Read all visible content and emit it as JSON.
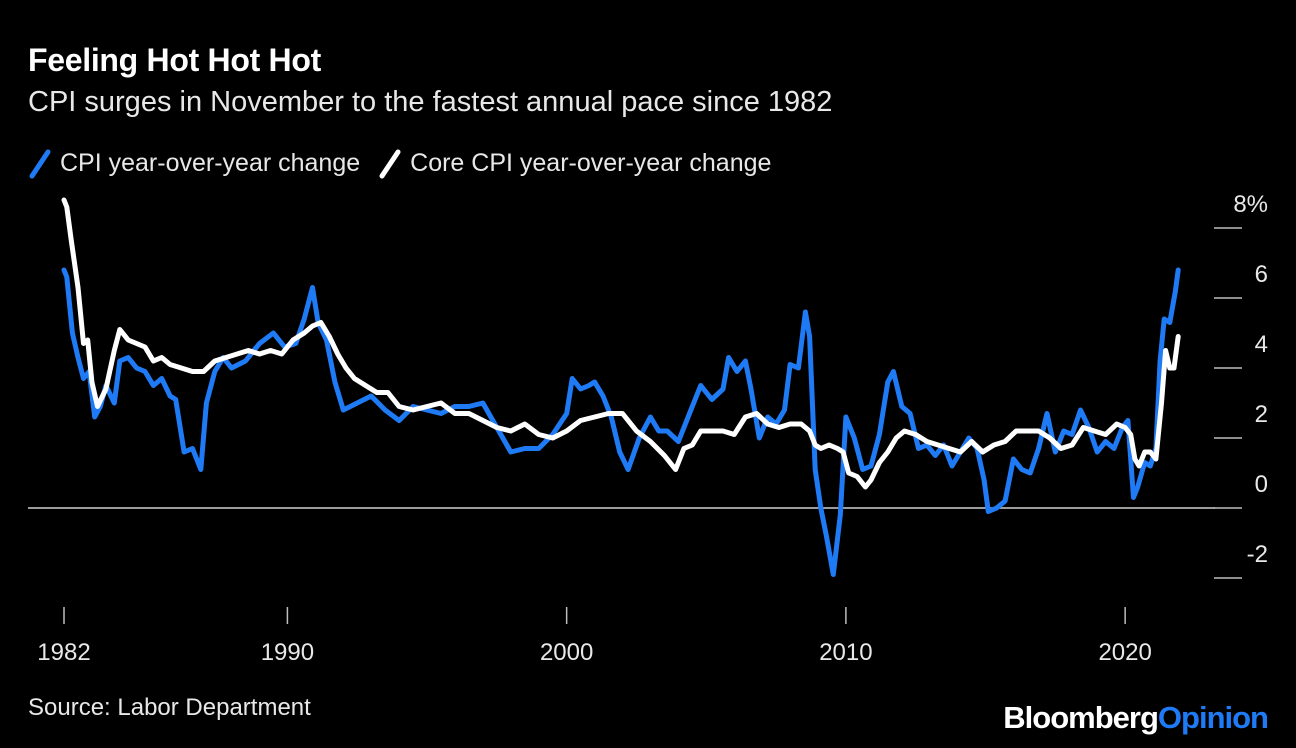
{
  "header": {
    "title": "Feeling Hot Hot Hot",
    "subtitle": "CPI surges in November to the fastest annual pace since 1982"
  },
  "legend": {
    "items": [
      {
        "label": "CPI year-over-year change",
        "color": "#1f7bf5"
      },
      {
        "label": "Core CPI year-over-year change",
        "color": "#ffffff"
      }
    ]
  },
  "footer": {
    "source": "Source: Labor Department",
    "brand_part1": "Bloomberg",
    "brand_part2": "Opinion"
  },
  "chart_data": {
    "type": "line",
    "title": "Feeling Hot Hot Hot",
    "subtitle": "CPI surges in November to the fastest annual pace since 1982",
    "xlabel": "",
    "ylabel": "",
    "ylim": [
      -2,
      8
    ],
    "xlim": [
      1982,
      2022
    ],
    "y_ticks": [
      -2,
      0,
      2,
      4,
      6,
      8
    ],
    "y_tick_labels": [
      "-2",
      "0",
      "2",
      "4",
      "6",
      "8%"
    ],
    "x_ticks": [
      1982,
      1990,
      2000,
      2010,
      2020
    ],
    "x_tick_labels": [
      "1982",
      "1990",
      "2000",
      "2010",
      "2020"
    ],
    "grid": false,
    "zero_line": true,
    "y_axis_position": "right",
    "legend_position": "top-left",
    "series": [
      {
        "name": "CPI year-over-year change",
        "color": "#1f7bf5",
        "x": [
          1982.0,
          1982.1,
          1982.3,
          1982.5,
          1982.7,
          1982.9,
          1983.1,
          1983.3,
          1983.5,
          1983.8,
          1984.0,
          1984.3,
          1984.6,
          1984.9,
          1985.2,
          1985.5,
          1985.8,
          1986.0,
          1986.3,
          1986.6,
          1986.9,
          1987.1,
          1987.4,
          1987.7,
          1988.0,
          1988.5,
          1989.0,
          1989.5,
          1989.9,
          1990.3,
          1990.6,
          1990.9,
          1991.1,
          1991.4,
          1991.7,
          1992.0,
          1992.5,
          1993.0,
          1993.5,
          1994.0,
          1994.5,
          1995.0,
          1995.5,
          1996.0,
          1996.5,
          1997.0,
          1997.5,
          1998.0,
          1998.5,
          1999.0,
          1999.5,
          2000.0,
          2000.2,
          2000.5,
          2000.8,
          2001.0,
          2001.3,
          2001.6,
          2001.9,
          2002.2,
          2002.6,
          2003.0,
          2003.3,
          2003.6,
          2004.0,
          2004.4,
          2004.8,
          2005.2,
          2005.6,
          2005.8,
          2006.1,
          2006.4,
          2006.6,
          2006.9,
          2007.2,
          2007.5,
          2007.8,
          2008.0,
          2008.3,
          2008.55,
          2008.7,
          2008.9,
          2009.1,
          2009.3,
          2009.55,
          2009.8,
          2010.0,
          2010.3,
          2010.6,
          2010.9,
          2011.2,
          2011.5,
          2011.7,
          2012.0,
          2012.3,
          2012.6,
          2012.9,
          2013.2,
          2013.5,
          2013.8,
          2014.1,
          2014.4,
          2014.7,
          2014.95,
          2015.1,
          2015.4,
          2015.7,
          2016.0,
          2016.3,
          2016.6,
          2016.9,
          2017.2,
          2017.5,
          2017.8,
          2018.1,
          2018.4,
          2018.7,
          2019.0,
          2019.3,
          2019.6,
          2019.9,
          2020.1,
          2020.3,
          2020.45,
          2020.7,
          2020.9,
          2021.1,
          2021.25,
          2021.4,
          2021.6,
          2021.8,
          2021.9
        ],
        "y": [
          6.8,
          6.6,
          5.0,
          4.3,
          3.7,
          3.9,
          2.6,
          2.9,
          3.5,
          3.0,
          4.2,
          4.3,
          4.0,
          3.9,
          3.5,
          3.7,
          3.2,
          3.1,
          1.6,
          1.7,
          1.1,
          3.0,
          3.9,
          4.3,
          4.0,
          4.2,
          4.7,
          5.0,
          4.6,
          4.7,
          5.4,
          6.3,
          5.3,
          4.8,
          3.6,
          2.8,
          3.0,
          3.2,
          2.8,
          2.5,
          2.9,
          2.8,
          2.7,
          2.9,
          2.9,
          3.0,
          2.3,
          1.6,
          1.7,
          1.7,
          2.1,
          2.7,
          3.7,
          3.4,
          3.5,
          3.6,
          3.2,
          2.6,
          1.6,
          1.1,
          2.0,
          2.6,
          2.2,
          2.2,
          1.9,
          2.7,
          3.5,
          3.1,
          3.4,
          4.3,
          3.9,
          4.2,
          3.4,
          2.0,
          2.6,
          2.4,
          2.8,
          4.1,
          4.0,
          5.6,
          4.9,
          1.1,
          0.0,
          -0.8,
          -1.9,
          -0.2,
          2.6,
          2.0,
          1.1,
          1.2,
          2.1,
          3.6,
          3.9,
          2.9,
          2.7,
          1.7,
          1.8,
          1.5,
          1.8,
          1.2,
          1.6,
          2.0,
          1.7,
          0.8,
          -0.1,
          0.0,
          0.2,
          1.4,
          1.1,
          1.0,
          1.7,
          2.7,
          1.6,
          2.2,
          2.1,
          2.8,
          2.3,
          1.6,
          1.9,
          1.7,
          2.3,
          2.5,
          0.3,
          0.6,
          1.3,
          1.2,
          1.7,
          4.2,
          5.4,
          5.3,
          6.2,
          6.8
        ]
      },
      {
        "name": "Core CPI year-over-year change",
        "color": "#ffffff",
        "x": [
          1982.0,
          1982.1,
          1982.25,
          1982.5,
          1982.7,
          1982.85,
          1983.0,
          1983.2,
          1983.5,
          1983.8,
          1984.0,
          1984.3,
          1984.6,
          1984.9,
          1985.2,
          1985.5,
          1985.8,
          1986.2,
          1986.6,
          1987.0,
          1987.4,
          1987.8,
          1988.2,
          1988.6,
          1989.0,
          1989.4,
          1989.8,
          1990.2,
          1990.6,
          1990.9,
          1991.2,
          1991.5,
          1991.8,
          1992.1,
          1992.4,
          1992.8,
          1993.2,
          1993.6,
          1994.0,
          1994.5,
          1995.0,
          1995.5,
          1996.0,
          1996.5,
          1997.0,
          1997.5,
          1998.0,
          1998.5,
          1999.0,
          1999.5,
          2000.0,
          2000.5,
          2001.0,
          2001.5,
          2002.0,
          2002.5,
          2003.0,
          2003.5,
          2003.9,
          2004.2,
          2004.5,
          2004.8,
          2005.2,
          2005.6,
          2006.0,
          2006.4,
          2006.8,
          2007.2,
          2007.6,
          2008.0,
          2008.4,
          2008.7,
          2008.9,
          2009.1,
          2009.4,
          2009.7,
          2009.9,
          2010.1,
          2010.4,
          2010.7,
          2010.9,
          2011.2,
          2011.5,
          2011.8,
          2012.1,
          2012.5,
          2012.9,
          2013.3,
          2013.7,
          2014.1,
          2014.5,
          2014.9,
          2015.3,
          2015.7,
          2016.1,
          2016.5,
          2016.9,
          2017.3,
          2017.7,
          2018.1,
          2018.5,
          2018.9,
          2019.3,
          2019.7,
          2020.0,
          2020.2,
          2020.35,
          2020.5,
          2020.7,
          2020.9,
          2021.1,
          2021.3,
          2021.45,
          2021.6,
          2021.75,
          2021.9
        ],
        "y": [
          8.8,
          8.6,
          7.7,
          6.3,
          4.7,
          4.8,
          3.6,
          2.9,
          3.4,
          4.5,
          5.1,
          4.8,
          4.7,
          4.6,
          4.2,
          4.3,
          4.1,
          4.0,
          3.9,
          3.9,
          4.2,
          4.3,
          4.4,
          4.5,
          4.4,
          4.5,
          4.4,
          4.8,
          5.0,
          5.2,
          5.3,
          4.9,
          4.4,
          4.0,
          3.7,
          3.5,
          3.3,
          3.3,
          2.9,
          2.8,
          2.9,
          3.0,
          2.7,
          2.7,
          2.5,
          2.3,
          2.2,
          2.4,
          2.1,
          2.0,
          2.2,
          2.5,
          2.6,
          2.7,
          2.7,
          2.2,
          1.9,
          1.5,
          1.1,
          1.7,
          1.8,
          2.2,
          2.2,
          2.2,
          2.1,
          2.6,
          2.7,
          2.4,
          2.3,
          2.4,
          2.4,
          2.2,
          1.8,
          1.7,
          1.8,
          1.7,
          1.6,
          1.0,
          0.9,
          0.6,
          0.8,
          1.3,
          1.6,
          2.0,
          2.2,
          2.1,
          1.9,
          1.8,
          1.7,
          1.6,
          1.9,
          1.6,
          1.8,
          1.9,
          2.2,
          2.2,
          2.2,
          2.0,
          1.7,
          1.8,
          2.3,
          2.2,
          2.1,
          2.4,
          2.3,
          2.1,
          1.4,
          1.2,
          1.6,
          1.6,
          1.4,
          3.0,
          4.5,
          4.0,
          4.0,
          4.9
        ]
      }
    ]
  }
}
